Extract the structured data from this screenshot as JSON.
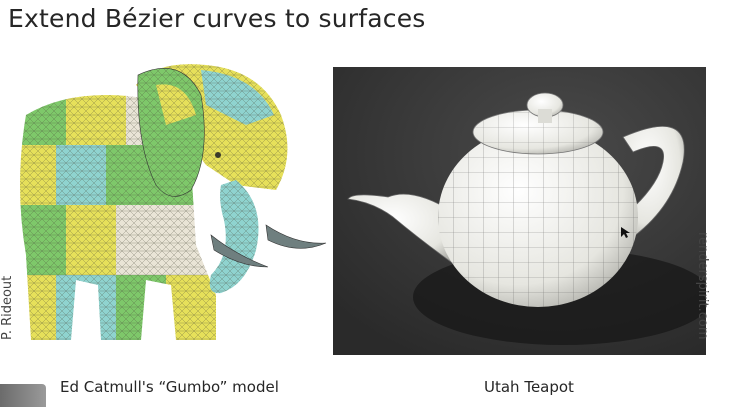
{
  "slide": {
    "title": "Extend Bézier curves to surfaces",
    "left_caption": "Ed Catmull's “Gumbo” model",
    "right_caption": "Utah Teapot",
    "left_credit": "P. Rideout",
    "right_credit": "renderspirit.com"
  },
  "colors": {
    "patch_yellow": "#e6e05a",
    "patch_green": "#7ec86a",
    "patch_teal": "#8fd3cf",
    "patch_white": "#e9e4d6",
    "teapot_bg": "#3a3a3a",
    "teapot_body": "#f3f3ef"
  }
}
